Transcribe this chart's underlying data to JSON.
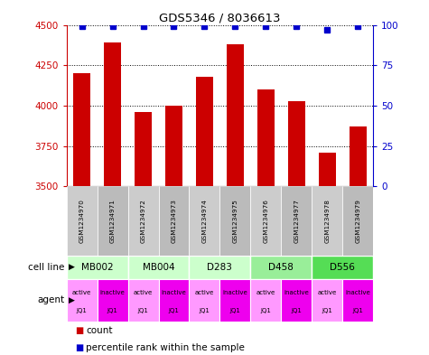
{
  "title": "GDS5346 / 8036613",
  "samples": [
    "GSM1234970",
    "GSM1234971",
    "GSM1234972",
    "GSM1234973",
    "GSM1234974",
    "GSM1234975",
    "GSM1234976",
    "GSM1234977",
    "GSM1234978",
    "GSM1234979"
  ],
  "counts": [
    4200,
    4390,
    3960,
    4000,
    4180,
    4380,
    4100,
    4030,
    3710,
    3870
  ],
  "percentile_ranks": [
    99,
    99,
    99,
    99,
    99,
    99,
    99,
    99,
    97,
    99
  ],
  "ylim_left": [
    3500,
    4500
  ],
  "ylim_right": [
    0,
    100
  ],
  "yticks_left": [
    3500,
    3750,
    4000,
    4250,
    4500
  ],
  "yticks_right": [
    0,
    25,
    50,
    75,
    100
  ],
  "bar_color": "#cc0000",
  "dot_color": "#0000cc",
  "cell_lines": [
    {
      "label": "MB002",
      "start": 0,
      "end": 2,
      "color": "#ccffcc"
    },
    {
      "label": "MB004",
      "start": 2,
      "end": 4,
      "color": "#ccffcc"
    },
    {
      "label": "D283",
      "start": 4,
      "end": 6,
      "color": "#ccffcc"
    },
    {
      "label": "D458",
      "start": 6,
      "end": 8,
      "color": "#99ee99"
    },
    {
      "label": "D556",
      "start": 8,
      "end": 10,
      "color": "#55dd55"
    }
  ],
  "agent_labels": [
    "active\nJQ1",
    "inactive\nJQ1",
    "active\nJQ1",
    "inactive\nJQ1",
    "active\nJQ1",
    "inactive\nJQ1",
    "active\nJQ1",
    "inactive\nJQ1",
    "active\nJQ1",
    "inactive\nJQ1"
  ],
  "agent_active_color": "#ff99ff",
  "agent_inactive_color": "#ee00ee",
  "sample_bg_even": "#cccccc",
  "sample_bg_odd": "#bbbbbb",
  "legend_red_label": "count",
  "legend_blue_label": "percentile rank within the sample",
  "cell_line_label": "cell line",
  "agent_label": "agent"
}
